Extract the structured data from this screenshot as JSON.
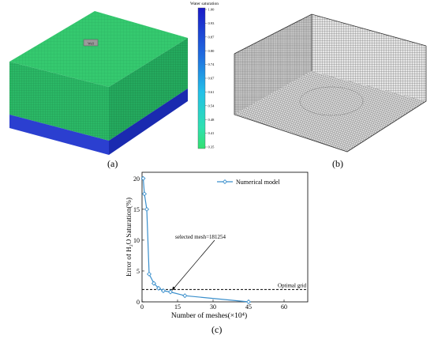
{
  "panel_a": {
    "caption": "(a)",
    "colorbar_title": "Water saturation",
    "colorbar_ticks": [
      "1.00",
      "0.93",
      "0.87",
      "0.80",
      "0.74",
      "0.67",
      "0.61",
      "0.54",
      "0.48",
      "0.41",
      "0.35"
    ],
    "well_label": "Well",
    "colors": {
      "top": "#33c66d",
      "side_front": "#2ab565",
      "side_right": "#1ea65a",
      "base_front": "#2b3fd0",
      "base_right": "#1a2ab0",
      "mesh": "#1f7f45"
    }
  },
  "panel_b": {
    "caption": "(b)",
    "colors": {
      "mesh": "#555555",
      "dark": "#333333"
    }
  },
  "panel_c": {
    "caption": "(c)",
    "chart_data": {
      "type": "line",
      "xlabel": "Number of meshes(×10⁴)",
      "ylabel": "Error of H₂O Saturation(%)",
      "xlim": [
        0,
        70
      ],
      "ylim": [
        0,
        21
      ],
      "xticks": [
        0,
        15,
        30,
        45,
        60
      ],
      "yticks": [
        0,
        5,
        10,
        15,
        20
      ],
      "series": [
        {
          "name": "Numerical model",
          "x": [
            0.5,
            1.0,
            2.0,
            3.0,
            5.0,
            7.0,
            9.0,
            12.0,
            18.1,
            45.0
          ],
          "y": [
            20.0,
            17.5,
            15.0,
            4.5,
            3.0,
            2.2,
            1.8,
            1.6,
            1.0,
            0.0
          ],
          "color": "#3a8fcc"
        }
      ],
      "reference_line": {
        "y": 2.0,
        "label": "Optimal grid"
      },
      "annotation": {
        "text": "selected mesh=181254",
        "x": 12.0,
        "y": 1.6
      }
    }
  }
}
